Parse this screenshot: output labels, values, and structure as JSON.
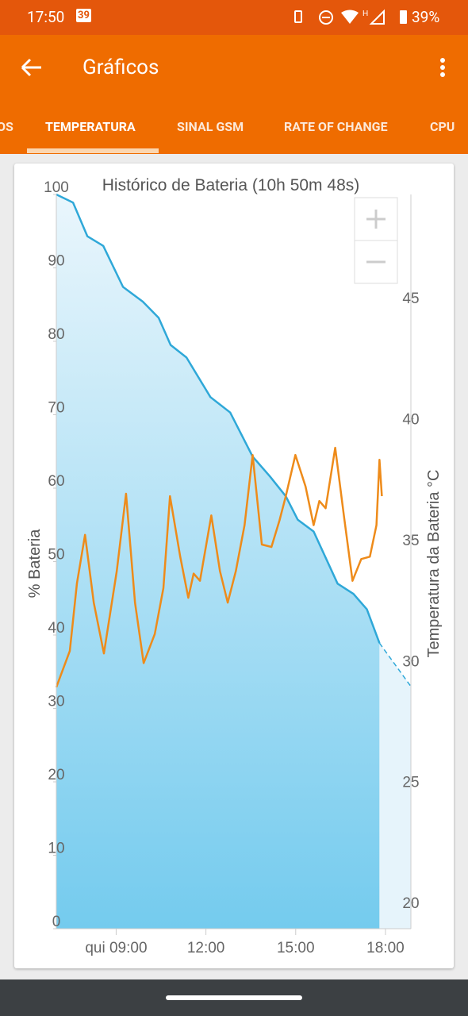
{
  "status_bar": {
    "time": "17:50",
    "badge": "39",
    "battery": "39%"
  },
  "app_bar": {
    "title": "Gráficos"
  },
  "tabs": [
    "OS",
    "TEMPERATURA",
    "SINAL GSM",
    "RATE OF CHANGE",
    "CPU"
  ],
  "chart_data": {
    "type": "line",
    "title": "Histórico de Bateria (10h 50m 48s)",
    "ylabel": "% Bateria",
    "y2label": "Temperatura da Bateria °C",
    "xlim": [
      7.0,
      18.85
    ],
    "xticks": [
      {
        "value": 9,
        "label": "qui 09:00"
      },
      {
        "value": 12,
        "label": "12:00"
      },
      {
        "value": 15,
        "label": "15:00"
      },
      {
        "value": 18,
        "label": "18:00"
      }
    ],
    "ylim": [
      0,
      100
    ],
    "yticks": [
      0,
      10,
      20,
      30,
      40,
      50,
      60,
      70,
      80,
      90,
      100
    ],
    "y2lim": [
      18.92,
      49.27
    ],
    "y2ticks": [
      20,
      25,
      30,
      35,
      40,
      45
    ],
    "series": [
      {
        "color": "#2fa8d8",
        "area": true,
        "x": [
          7.0,
          7.56,
          8.04,
          8.57,
          9.23,
          9.89,
          10.42,
          10.82,
          11.35,
          12.15,
          12.81,
          13.56,
          14.14,
          14.67,
          15.07,
          15.6,
          16.4,
          16.93,
          17.38,
          17.8
        ],
        "values": [
          100,
          98.9,
          94.3,
          93,
          87.4,
          85.4,
          83.2,
          79.5,
          77.8,
          72.4,
          70.3,
          64.3,
          61.6,
          58.9,
          55.7,
          54.1,
          47,
          45.6,
          43.5,
          38.9
        ]
      },
      {
        "color": "#2fa8d8",
        "area": true,
        "dashed": true,
        "x": [
          17.8,
          18.85
        ],
        "values": [
          38.9,
          33
        ]
      },
      {
        "color": "#ee8b1a",
        "axis": "y2",
        "x": [
          7.0,
          7.45,
          7.69,
          7.96,
          8.25,
          8.59,
          9.02,
          9.33,
          9.63,
          9.92,
          10.29,
          10.58,
          10.8,
          11.14,
          11.41,
          11.59,
          11.8,
          12.18,
          12.47,
          12.73,
          13.0,
          13.29,
          13.56,
          13.87,
          14.19,
          14.46,
          14.67,
          14.99,
          15.33,
          15.6,
          15.79,
          16.0,
          16.32,
          16.61,
          16.9,
          17.19,
          17.48,
          17.7,
          17.8,
          17.88
        ],
        "values": [
          28.9,
          30.4,
          33.2,
          35.2,
          32.4,
          30.3,
          33.7,
          36.9,
          32.4,
          29.9,
          31.1,
          33.0,
          36.8,
          34.3,
          32.6,
          33.6,
          33.3,
          36.0,
          33.7,
          32.4,
          33.7,
          35.6,
          38.5,
          34.8,
          34.7,
          35.8,
          36.8,
          38.5,
          37.2,
          35.6,
          36.6,
          36.3,
          38.8,
          36.0,
          33.3,
          34.2,
          34.3,
          35.6,
          38.3,
          36.8
        ]
      }
    ]
  }
}
